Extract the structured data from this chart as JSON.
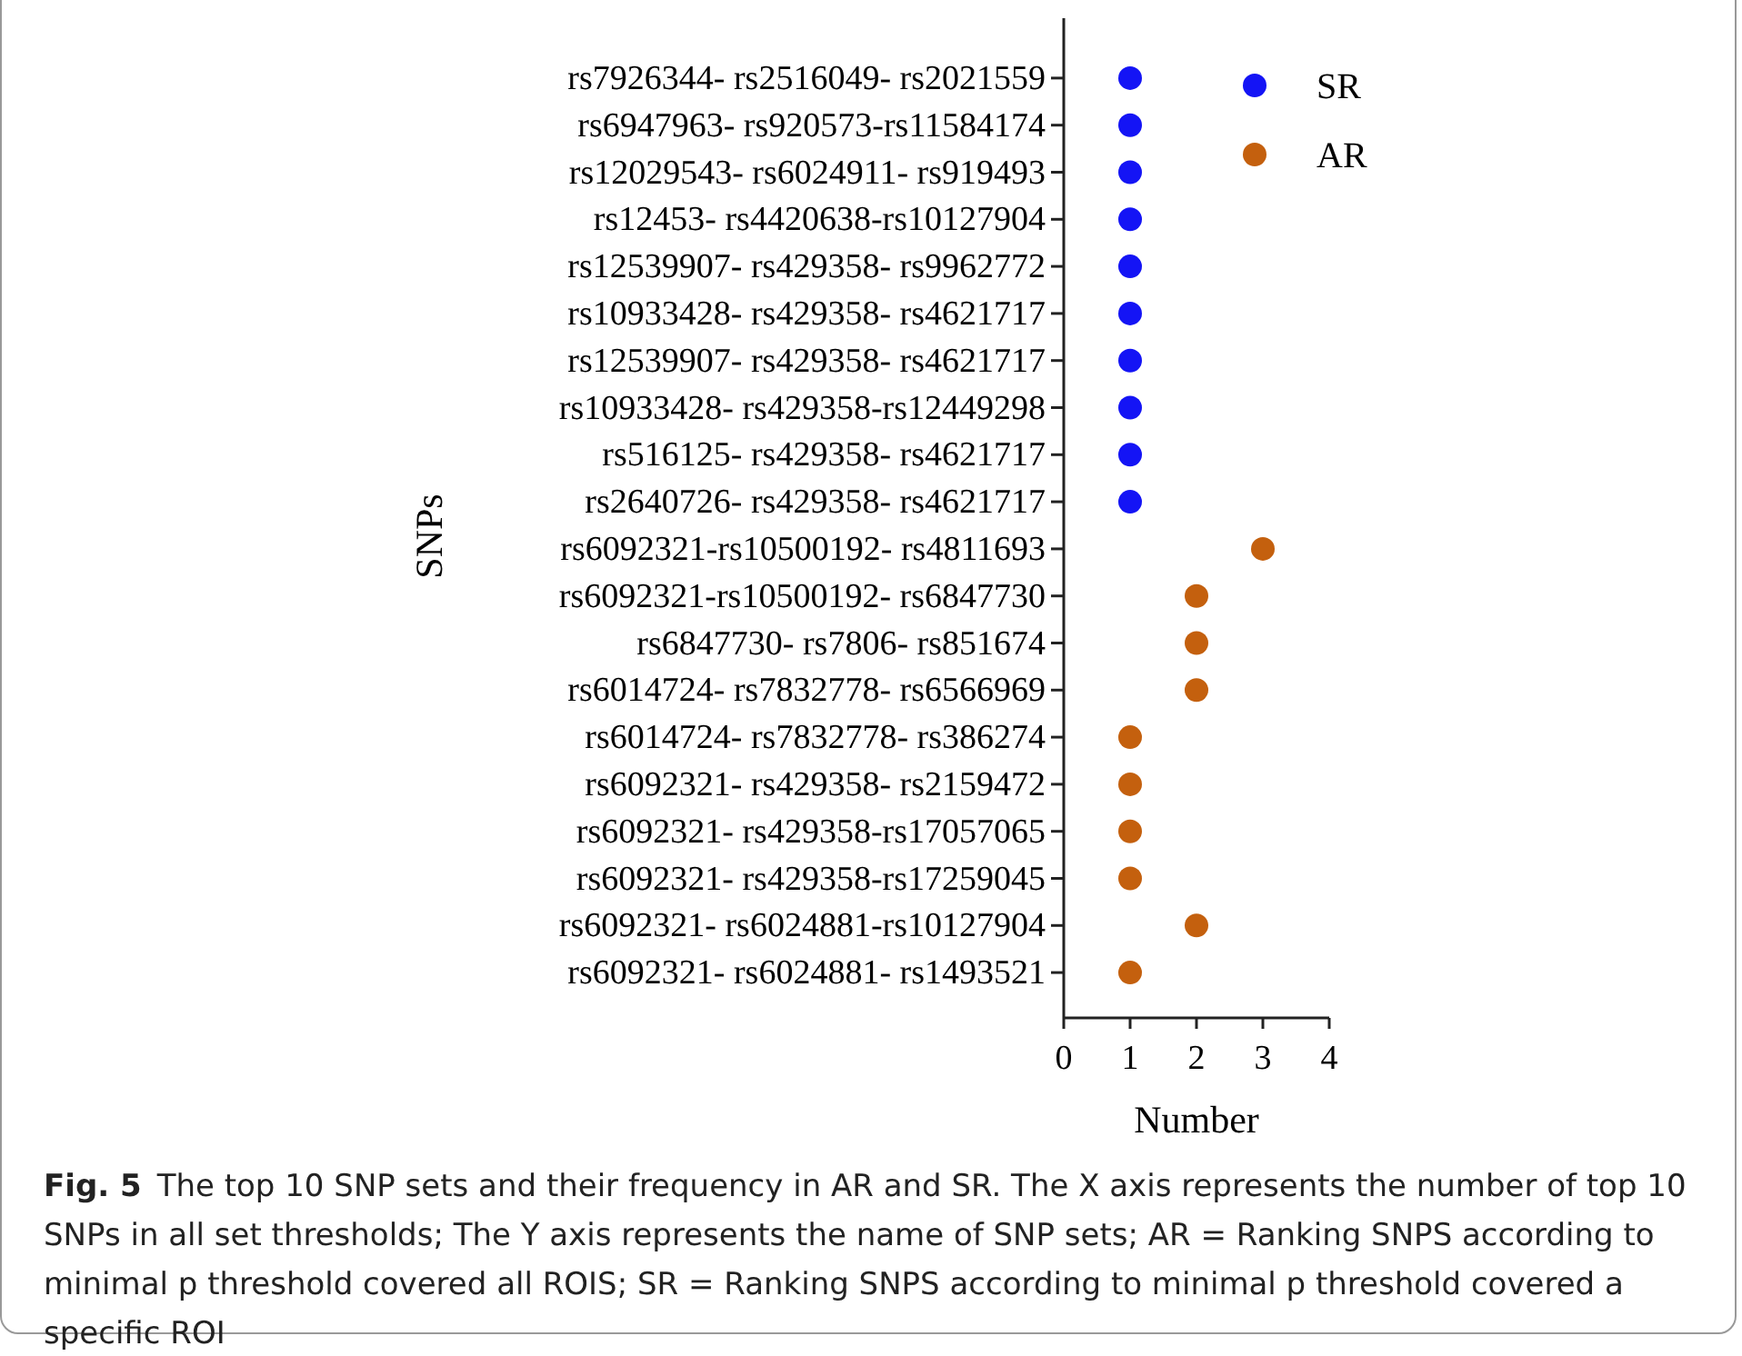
{
  "chart_data": {
    "type": "scatter",
    "orientation": "horizontal",
    "ylabel": "SNPs",
    "xlabel": "Number",
    "categories": [
      "rs7926344- rs2516049- rs2021559",
      "rs6947963- rs920573-rs11584174",
      "rs12029543- rs6024911- rs919493",
      "rs12453- rs4420638-rs10127904",
      "rs12539907- rs429358- rs9962772",
      "rs10933428- rs429358- rs4621717",
      "rs12539907- rs429358- rs4621717",
      "rs10933428- rs429358-rs12449298",
      "rs516125- rs429358- rs4621717",
      "rs2640726- rs429358- rs4621717",
      "rs6092321-rs10500192- rs4811693",
      "rs6092321-rs10500192- rs6847730",
      "rs6847730- rs7806- rs851674",
      "rs6014724- rs7832778- rs6566969",
      "rs6014724- rs7832778- rs386274",
      "rs6092321- rs429358- rs2159472",
      "rs6092321- rs429358-rs17057065",
      "rs6092321- rs429358-rs17259045",
      "rs6092321- rs6024881-rs10127904",
      "rs6092321- rs6024881- rs1493521"
    ],
    "series": [
      {
        "name": "SR",
        "color": "#1414f5",
        "values": [
          1,
          1,
          1,
          1,
          1,
          1,
          1,
          1,
          1,
          1,
          null,
          null,
          null,
          null,
          null,
          null,
          null,
          null,
          null,
          null
        ]
      },
      {
        "name": "AR",
        "color": "#c4600e",
        "values": [
          null,
          null,
          null,
          null,
          null,
          null,
          null,
          null,
          null,
          null,
          3,
          2,
          2,
          2,
          1,
          1,
          1,
          1,
          2,
          1
        ]
      }
    ],
    "xlim": [
      0,
      4
    ],
    "xticks": [
      0,
      1,
      2,
      3,
      4
    ],
    "marker": "circle",
    "legend": "top right",
    "grid": false,
    "annotations": [
      "Fig. 5",
      "The top 10 SNP sets and their frequency in AR and SR. The X axis represents the number of top 10 SNPs in all set thresholds; The Y axis represents the name of SNP sets; AR = Ranking SNPS according to minimal p threshold covered all ROIS; SR = Ranking SNPS according to minimal p threshold covered a specific ROI"
    ]
  }
}
